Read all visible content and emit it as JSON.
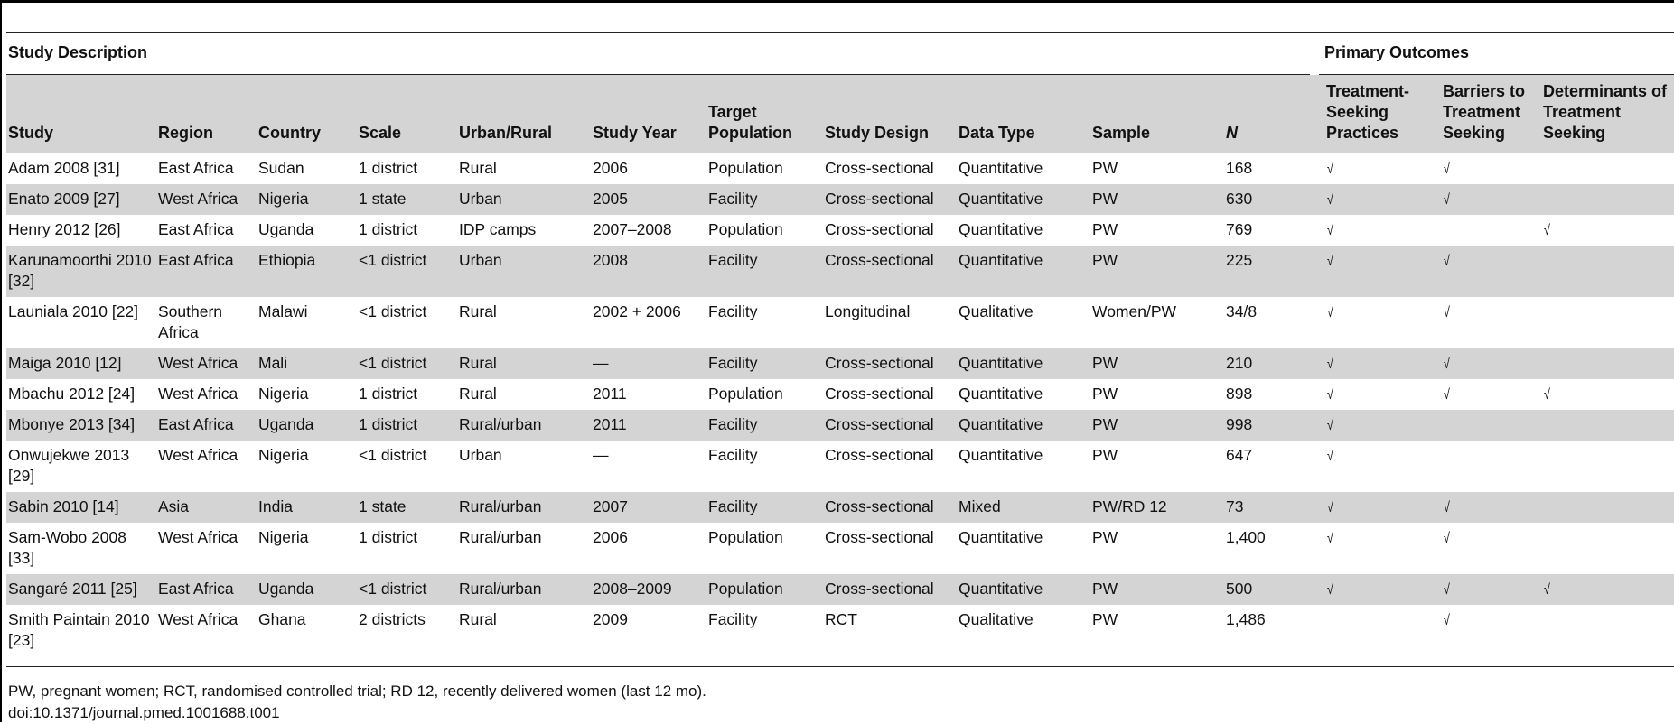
{
  "groups": {
    "study_description": "Study Description",
    "primary_outcomes": "Primary Outcomes"
  },
  "columns": {
    "study": "Study",
    "region": "Region",
    "country": "Country",
    "scale": "Scale",
    "urban_rural": "Urban/Rural",
    "study_year": "Study Year",
    "target_population": "Target Population",
    "study_design": "Study Design",
    "data_type": "Data Type",
    "sample": "Sample",
    "n": "N",
    "treatment_seeking": "Treatment-Seeking Practices",
    "barriers": "Barriers to Treatment Seeking",
    "determinants": "Determinants of Treatment Seeking"
  },
  "check_mark": "√",
  "rows": [
    {
      "study": "Adam 2008 [31]",
      "region": "East Africa",
      "country": "Sudan",
      "scale": "1 district",
      "urban_rural": "Rural",
      "year": "2006",
      "target": "Population",
      "design": "Cross-sectional",
      "data_type": "Quantitative",
      "sample": "PW",
      "n": "168",
      "tsp": "√",
      "bts": "√",
      "dts": ""
    },
    {
      "study": "Enato 2009 [27]",
      "region": "West Africa",
      "country": "Nigeria",
      "scale": "1 state",
      "urban_rural": "Urban",
      "year": "2005",
      "target": "Facility",
      "design": "Cross-sectional",
      "data_type": "Quantitative",
      "sample": "PW",
      "n": "630",
      "tsp": "√",
      "bts": "√",
      "dts": ""
    },
    {
      "study": "Henry 2012 [26]",
      "region": "East Africa",
      "country": "Uganda",
      "scale": "1 district",
      "urban_rural": "IDP camps",
      "year": "2007–2008",
      "target": "Population",
      "design": "Cross-sectional",
      "data_type": "Quantitative",
      "sample": "PW",
      "n": "769",
      "tsp": "√",
      "bts": "",
      "dts": "√"
    },
    {
      "study": "Karunamoorthi 2010 [32]",
      "region": "East Africa",
      "country": "Ethiopia",
      "scale": "<1 district",
      "urban_rural": "Urban",
      "year": "2008",
      "target": "Facility",
      "design": "Cross-sectional",
      "data_type": "Quantitative",
      "sample": "PW",
      "n": "225",
      "tsp": "√",
      "bts": "√",
      "dts": ""
    },
    {
      "study": "Launiala 2010 [22]",
      "region": "Southern Africa",
      "country": "Malawi",
      "scale": "<1 district",
      "urban_rural": "Rural",
      "year": "2002 + 2006",
      "target": "Facility",
      "design": "Longitudinal",
      "data_type": "Qualitative",
      "sample": "Women/PW",
      "n": "34/8",
      "tsp": "√",
      "bts": "√",
      "dts": ""
    },
    {
      "study": "Maiga 2010 [12]",
      "region": "West Africa",
      "country": "Mali",
      "scale": "<1 district",
      "urban_rural": "Rural",
      "year": "—",
      "target": "Facility",
      "design": "Cross-sectional",
      "data_type": "Quantitative",
      "sample": "PW",
      "n": "210",
      "tsp": "√",
      "bts": "√",
      "dts": ""
    },
    {
      "study": "Mbachu 2012 [24]",
      "region": "West Africa",
      "country": "Nigeria",
      "scale": "1 district",
      "urban_rural": "Rural",
      "year": "2011",
      "target": "Population",
      "design": "Cross-sectional",
      "data_type": "Quantitative",
      "sample": "PW",
      "n": "898",
      "tsp": "√",
      "bts": "√",
      "dts": "√"
    },
    {
      "study": "Mbonye 2013 [34]",
      "region": "East Africa",
      "country": "Uganda",
      "scale": "1 district",
      "urban_rural": "Rural/urban",
      "year": "2011",
      "target": "Facility",
      "design": "Cross-sectional",
      "data_type": "Quantitative",
      "sample": "PW",
      "n": "998",
      "tsp": "√",
      "bts": "",
      "dts": ""
    },
    {
      "study": "Onwujekwe 2013 [29]",
      "region": "West Africa",
      "country": "Nigeria",
      "scale": "<1 district",
      "urban_rural": "Urban",
      "year": "—",
      "target": "Facility",
      "design": "Cross-sectional",
      "data_type": "Quantitative",
      "sample": "PW",
      "n": "647",
      "tsp": "√",
      "bts": "",
      "dts": ""
    },
    {
      "study": "Sabin 2010 [14]",
      "region": "Asia",
      "country": "India",
      "scale": "1 state",
      "urban_rural": "Rural/urban",
      "year": "2007",
      "target": "Facility",
      "design": "Cross-sectional",
      "data_type": "Mixed",
      "sample": "PW/RD 12",
      "n": "73",
      "tsp": "√",
      "bts": "√",
      "dts": ""
    },
    {
      "study": "Sam-Wobo 2008 [33]",
      "region": "West Africa",
      "country": "Nigeria",
      "scale": "1 district",
      "urban_rural": "Rural/urban",
      "year": "2006",
      "target": "Population",
      "design": "Cross-sectional",
      "data_type": "Quantitative",
      "sample": "PW",
      "n": "1,400",
      "tsp": "√",
      "bts": "√",
      "dts": ""
    },
    {
      "study": "Sangaré 2011 [25]",
      "region": "East Africa",
      "country": "Uganda",
      "scale": "<1 district",
      "urban_rural": "Rural/urban",
      "year": "2008–2009",
      "target": "Population",
      "design": "Cross-sectional",
      "data_type": "Quantitative",
      "sample": "PW",
      "n": "500",
      "tsp": "√",
      "bts": "√",
      "dts": "√"
    },
    {
      "study": "Smith Paintain 2010 [23]",
      "region": "West Africa",
      "country": "Ghana",
      "scale": "2 districts",
      "urban_rural": "Rural",
      "year": "2009",
      "target": "Facility",
      "design": "RCT",
      "data_type": "Qualitative",
      "sample": "PW",
      "n": "1,486",
      "tsp": "",
      "bts": "√",
      "dts": ""
    }
  ],
  "footnote": "PW, pregnant women; RCT, randomised controlled trial; RD 12, recently delivered women (last 12 mo).",
  "doi": "doi:10.1371/journal.pmed.1001688.t001"
}
